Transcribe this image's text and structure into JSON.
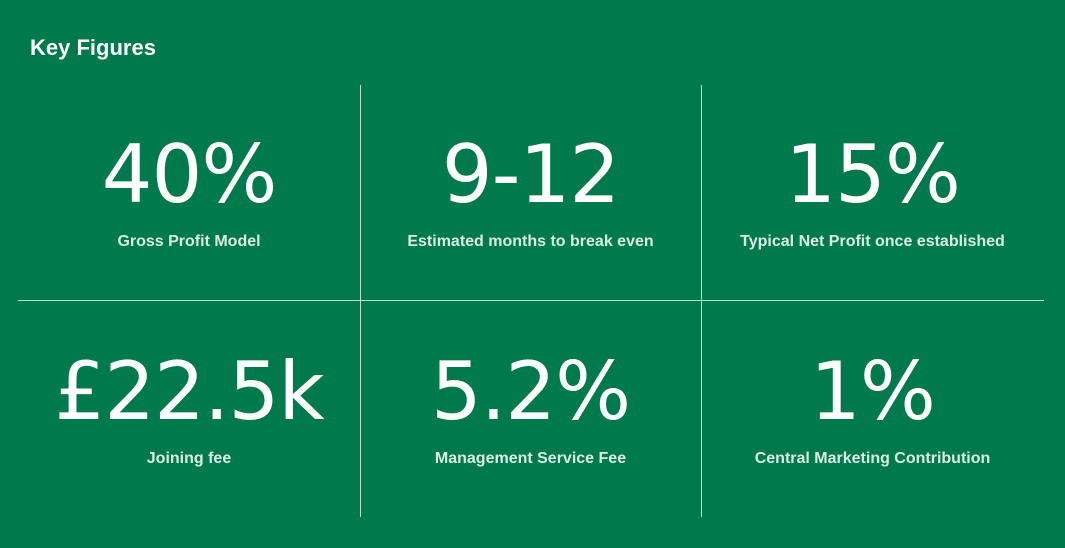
{
  "background_color": "#007a4c",
  "text_color": "#ffffff",
  "title": "Key Figures",
  "figures": [
    {
      "value": "40%",
      "label": "Gross Profit Model"
    },
    {
      "value": "9-12",
      "label": "Estimated months to break even"
    },
    {
      "value": "15%",
      "label": "Typical Net Profit once established"
    },
    {
      "value": "£22.5k",
      "label": "Joining fee"
    },
    {
      "value": "5.2%",
      "label": "Management Service Fee"
    },
    {
      "value": "1%",
      "label": "Central Marketing Contribution"
    }
  ]
}
